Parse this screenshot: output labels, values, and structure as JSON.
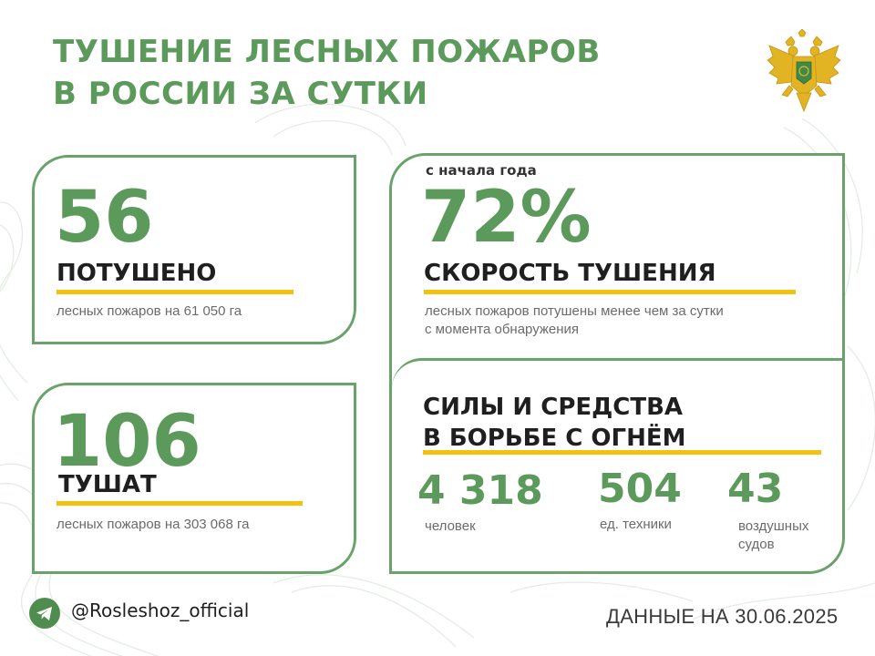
{
  "title": {
    "line1": "ТУШЕНИЕ ЛЕСНЫХ ПОЖАРОВ",
    "line2": "В РОССИИ ЗА СУТКИ"
  },
  "extinguished": {
    "value": "56",
    "label": "ПОТУШЕНО",
    "note": "лесных пожаров на 61 050 га"
  },
  "being_extinguished": {
    "value": "106",
    "label": "ТУШАТ",
    "note": "лесных пожаров на 303 068 га"
  },
  "speed": {
    "caption": "с начала года",
    "value": "72%",
    "label": "СКОРОСТЬ ТУШЕНИЯ",
    "note_line1": "лесных пожаров потушены менее чем за сутки",
    "note_line2": "с момента обнаружения"
  },
  "forces": {
    "heading_line1": "СИЛЫ И СРЕДСТВА",
    "heading_line2": "В БОРЬБЕ С ОГНЁМ",
    "people": {
      "value": "4 318",
      "label": "человек"
    },
    "vehicles": {
      "value": "504",
      "label": "ед. техники"
    },
    "aircraft": {
      "value": "43",
      "label_line1": "воздушных",
      "label_line2": "судов"
    }
  },
  "footer": {
    "handle": "@Rosleshoz_official",
    "date": "ДАННЫЕ НА 30.06.2025"
  },
  "colors": {
    "accent_green": "#5c9a5c",
    "bar_yellow": "#f2c20e",
    "text_dark": "#1f1f1f"
  },
  "icons": {
    "emblem": "coat-of-arms-icon",
    "telegram": "telegram-icon"
  }
}
